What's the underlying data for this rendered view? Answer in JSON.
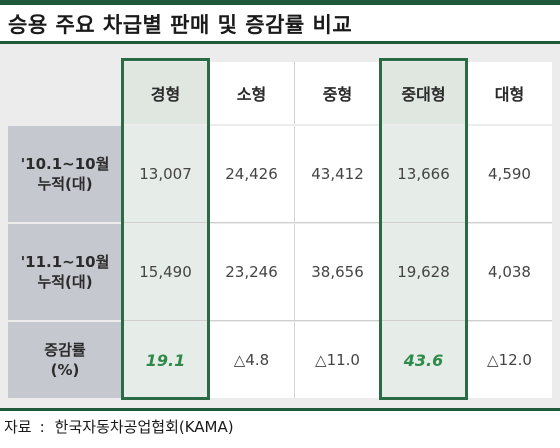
{
  "title": "승용 주요 차급별 판매 및 증감률 비교",
  "table": {
    "columns": [
      "경형",
      "소형",
      "중형",
      "중대형",
      "대형"
    ],
    "highlighted_columns": [
      "경형",
      "중대형"
    ],
    "rows": [
      {
        "label_line1": "'10.1~10월",
        "label_line2": "누적(대)",
        "values": [
          "13,007",
          "24,426",
          "43,412",
          "13,666",
          "4,590"
        ]
      },
      {
        "label_line1": "'11.1~10월",
        "label_line2": "누적(대)",
        "values": [
          "15,490",
          "23,246",
          "38,656",
          "19,628",
          "4,038"
        ]
      },
      {
        "label_line1": "증감률",
        "label_line2": "(%)",
        "values": [
          "19.1",
          "△4.8",
          "△11.0",
          "43.6",
          "△12.0"
        ]
      }
    ]
  },
  "source": {
    "label": "자료",
    "separator": ":",
    "text": "한국자동차공업협회(KAMA)"
  },
  "colors": {
    "accent_green": "#1f5a3a",
    "highlight_text": "#2f8a4a",
    "row_header_bg": "#c5c8ce"
  }
}
